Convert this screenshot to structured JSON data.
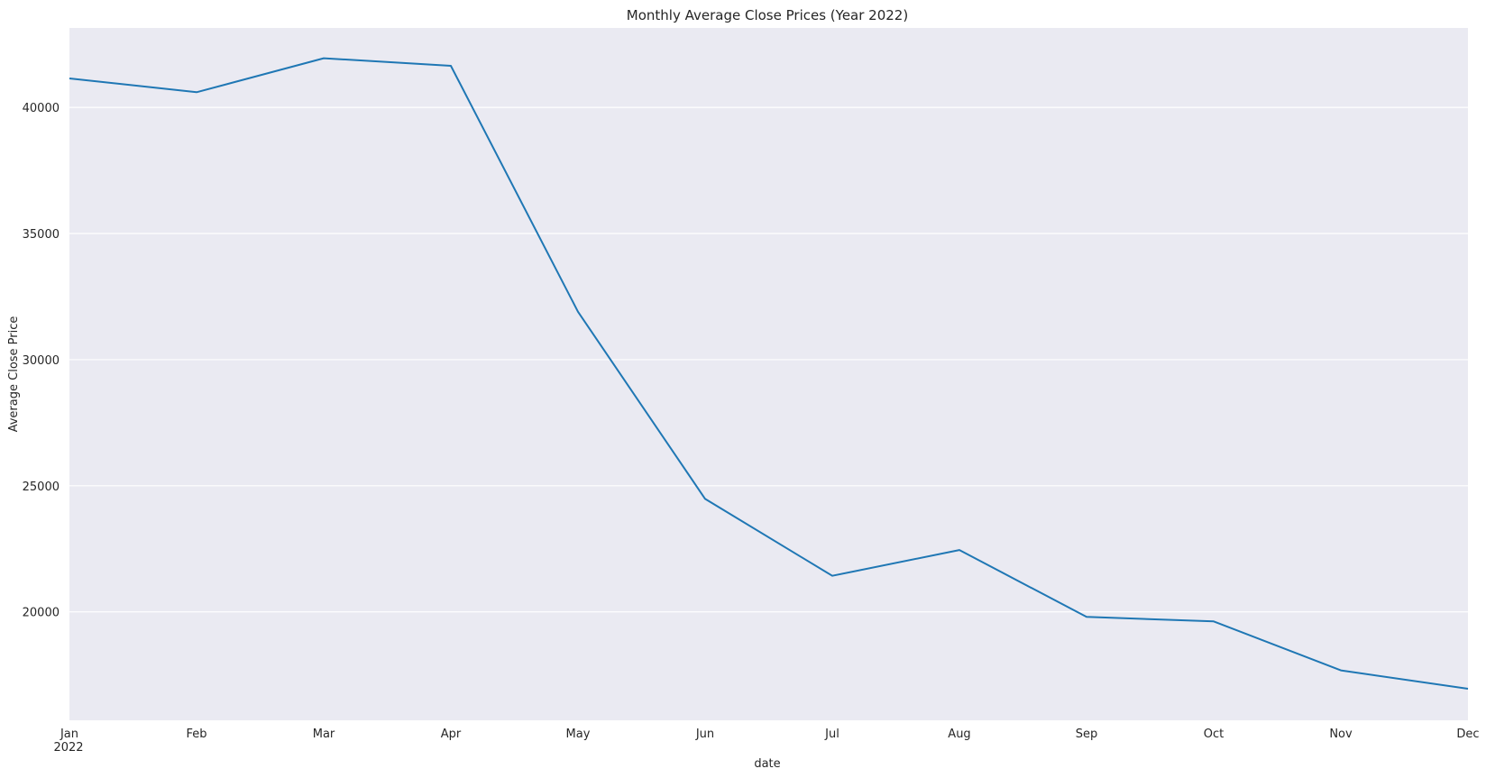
{
  "chart_data": {
    "type": "line",
    "title": "Monthly Average Close Prices (Year 2022)",
    "xlabel": "date",
    "ylabel": "Average Close Price",
    "x": [
      "Jan",
      "Feb",
      "Mar",
      "Apr",
      "May",
      "Jun",
      "Jul",
      "Aug",
      "Sep",
      "Oct",
      "Nov",
      "Dec"
    ],
    "x_year_label": "2022",
    "series": [
      {
        "values": [
          41150,
          40600,
          41950,
          41650,
          31900,
          24480,
          21430,
          22450,
          19800,
          19620,
          17680,
          16950
        ],
        "color": "#1f77b4"
      }
    ],
    "yticks": [
      20000,
      25000,
      30000,
      35000,
      40000
    ],
    "ylim": [
      15700,
      43150
    ],
    "grid": "horizontal",
    "background": "#eaeaf2"
  }
}
